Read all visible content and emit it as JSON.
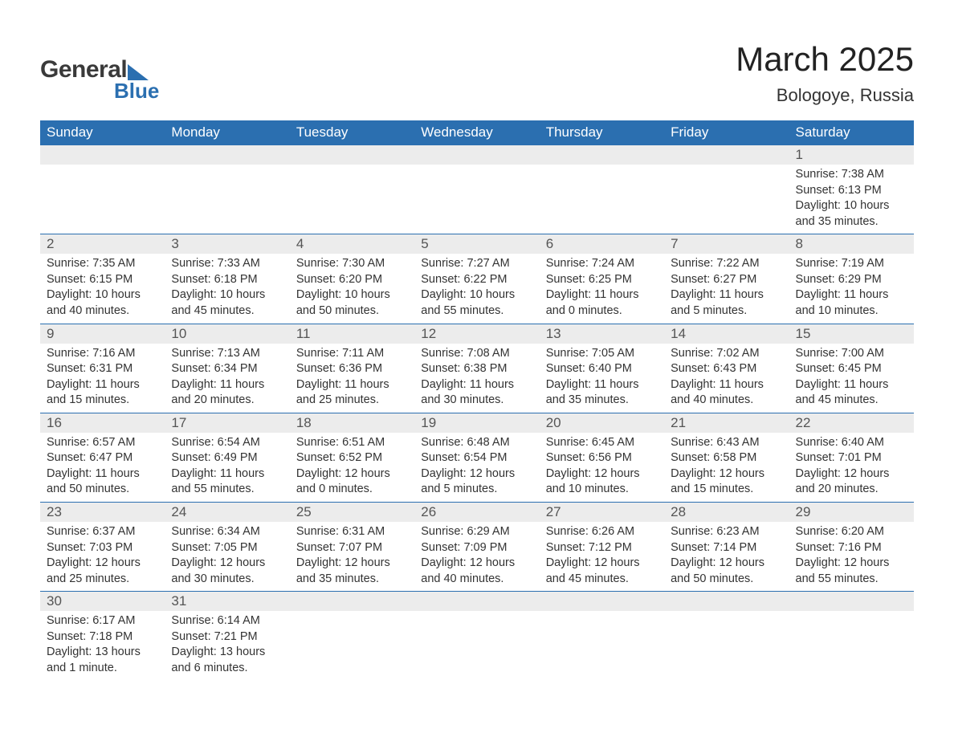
{
  "brand": {
    "word1": "General",
    "word2": "Blue",
    "accent_color": "#2b6fb0"
  },
  "header": {
    "title": "March 2025",
    "location": "Bologoye, Russia"
  },
  "calendar": {
    "header_bg": "#2b6fb0",
    "header_fg": "#ffffff",
    "daynum_bg": "#ececec",
    "row_border": "#2b6fb0",
    "columns": [
      "Sunday",
      "Monday",
      "Tuesday",
      "Wednesday",
      "Thursday",
      "Friday",
      "Saturday"
    ],
    "weeks": [
      [
        null,
        null,
        null,
        null,
        null,
        null,
        {
          "n": "1",
          "sunrise": "7:38 AM",
          "sunset": "6:13 PM",
          "daylight": "10 hours and 35 minutes."
        }
      ],
      [
        {
          "n": "2",
          "sunrise": "7:35 AM",
          "sunset": "6:15 PM",
          "daylight": "10 hours and 40 minutes."
        },
        {
          "n": "3",
          "sunrise": "7:33 AM",
          "sunset": "6:18 PM",
          "daylight": "10 hours and 45 minutes."
        },
        {
          "n": "4",
          "sunrise": "7:30 AM",
          "sunset": "6:20 PM",
          "daylight": "10 hours and 50 minutes."
        },
        {
          "n": "5",
          "sunrise": "7:27 AM",
          "sunset": "6:22 PM",
          "daylight": "10 hours and 55 minutes."
        },
        {
          "n": "6",
          "sunrise": "7:24 AM",
          "sunset": "6:25 PM",
          "daylight": "11 hours and 0 minutes."
        },
        {
          "n": "7",
          "sunrise": "7:22 AM",
          "sunset": "6:27 PM",
          "daylight": "11 hours and 5 minutes."
        },
        {
          "n": "8",
          "sunrise": "7:19 AM",
          "sunset": "6:29 PM",
          "daylight": "11 hours and 10 minutes."
        }
      ],
      [
        {
          "n": "9",
          "sunrise": "7:16 AM",
          "sunset": "6:31 PM",
          "daylight": "11 hours and 15 minutes."
        },
        {
          "n": "10",
          "sunrise": "7:13 AM",
          "sunset": "6:34 PM",
          "daylight": "11 hours and 20 minutes."
        },
        {
          "n": "11",
          "sunrise": "7:11 AM",
          "sunset": "6:36 PM",
          "daylight": "11 hours and 25 minutes."
        },
        {
          "n": "12",
          "sunrise": "7:08 AM",
          "sunset": "6:38 PM",
          "daylight": "11 hours and 30 minutes."
        },
        {
          "n": "13",
          "sunrise": "7:05 AM",
          "sunset": "6:40 PM",
          "daylight": "11 hours and 35 minutes."
        },
        {
          "n": "14",
          "sunrise": "7:02 AM",
          "sunset": "6:43 PM",
          "daylight": "11 hours and 40 minutes."
        },
        {
          "n": "15",
          "sunrise": "7:00 AM",
          "sunset": "6:45 PM",
          "daylight": "11 hours and 45 minutes."
        }
      ],
      [
        {
          "n": "16",
          "sunrise": "6:57 AM",
          "sunset": "6:47 PM",
          "daylight": "11 hours and 50 minutes."
        },
        {
          "n": "17",
          "sunrise": "6:54 AM",
          "sunset": "6:49 PM",
          "daylight": "11 hours and 55 minutes."
        },
        {
          "n": "18",
          "sunrise": "6:51 AM",
          "sunset": "6:52 PM",
          "daylight": "12 hours and 0 minutes."
        },
        {
          "n": "19",
          "sunrise": "6:48 AM",
          "sunset": "6:54 PM",
          "daylight": "12 hours and 5 minutes."
        },
        {
          "n": "20",
          "sunrise": "6:45 AM",
          "sunset": "6:56 PM",
          "daylight": "12 hours and 10 minutes."
        },
        {
          "n": "21",
          "sunrise": "6:43 AM",
          "sunset": "6:58 PM",
          "daylight": "12 hours and 15 minutes."
        },
        {
          "n": "22",
          "sunrise": "6:40 AM",
          "sunset": "7:01 PM",
          "daylight": "12 hours and 20 minutes."
        }
      ],
      [
        {
          "n": "23",
          "sunrise": "6:37 AM",
          "sunset": "7:03 PM",
          "daylight": "12 hours and 25 minutes."
        },
        {
          "n": "24",
          "sunrise": "6:34 AM",
          "sunset": "7:05 PM",
          "daylight": "12 hours and 30 minutes."
        },
        {
          "n": "25",
          "sunrise": "6:31 AM",
          "sunset": "7:07 PM",
          "daylight": "12 hours and 35 minutes."
        },
        {
          "n": "26",
          "sunrise": "6:29 AM",
          "sunset": "7:09 PM",
          "daylight": "12 hours and 40 minutes."
        },
        {
          "n": "27",
          "sunrise": "6:26 AM",
          "sunset": "7:12 PM",
          "daylight": "12 hours and 45 minutes."
        },
        {
          "n": "28",
          "sunrise": "6:23 AM",
          "sunset": "7:14 PM",
          "daylight": "12 hours and 50 minutes."
        },
        {
          "n": "29",
          "sunrise": "6:20 AM",
          "sunset": "7:16 PM",
          "daylight": "12 hours and 55 minutes."
        }
      ],
      [
        {
          "n": "30",
          "sunrise": "6:17 AM",
          "sunset": "7:18 PM",
          "daylight": "13 hours and 1 minute."
        },
        {
          "n": "31",
          "sunrise": "6:14 AM",
          "sunset": "7:21 PM",
          "daylight": "13 hours and 6 minutes."
        },
        null,
        null,
        null,
        null,
        null
      ]
    ],
    "labels": {
      "sunrise": "Sunrise: ",
      "sunset": "Sunset: ",
      "daylight": "Daylight: "
    }
  }
}
